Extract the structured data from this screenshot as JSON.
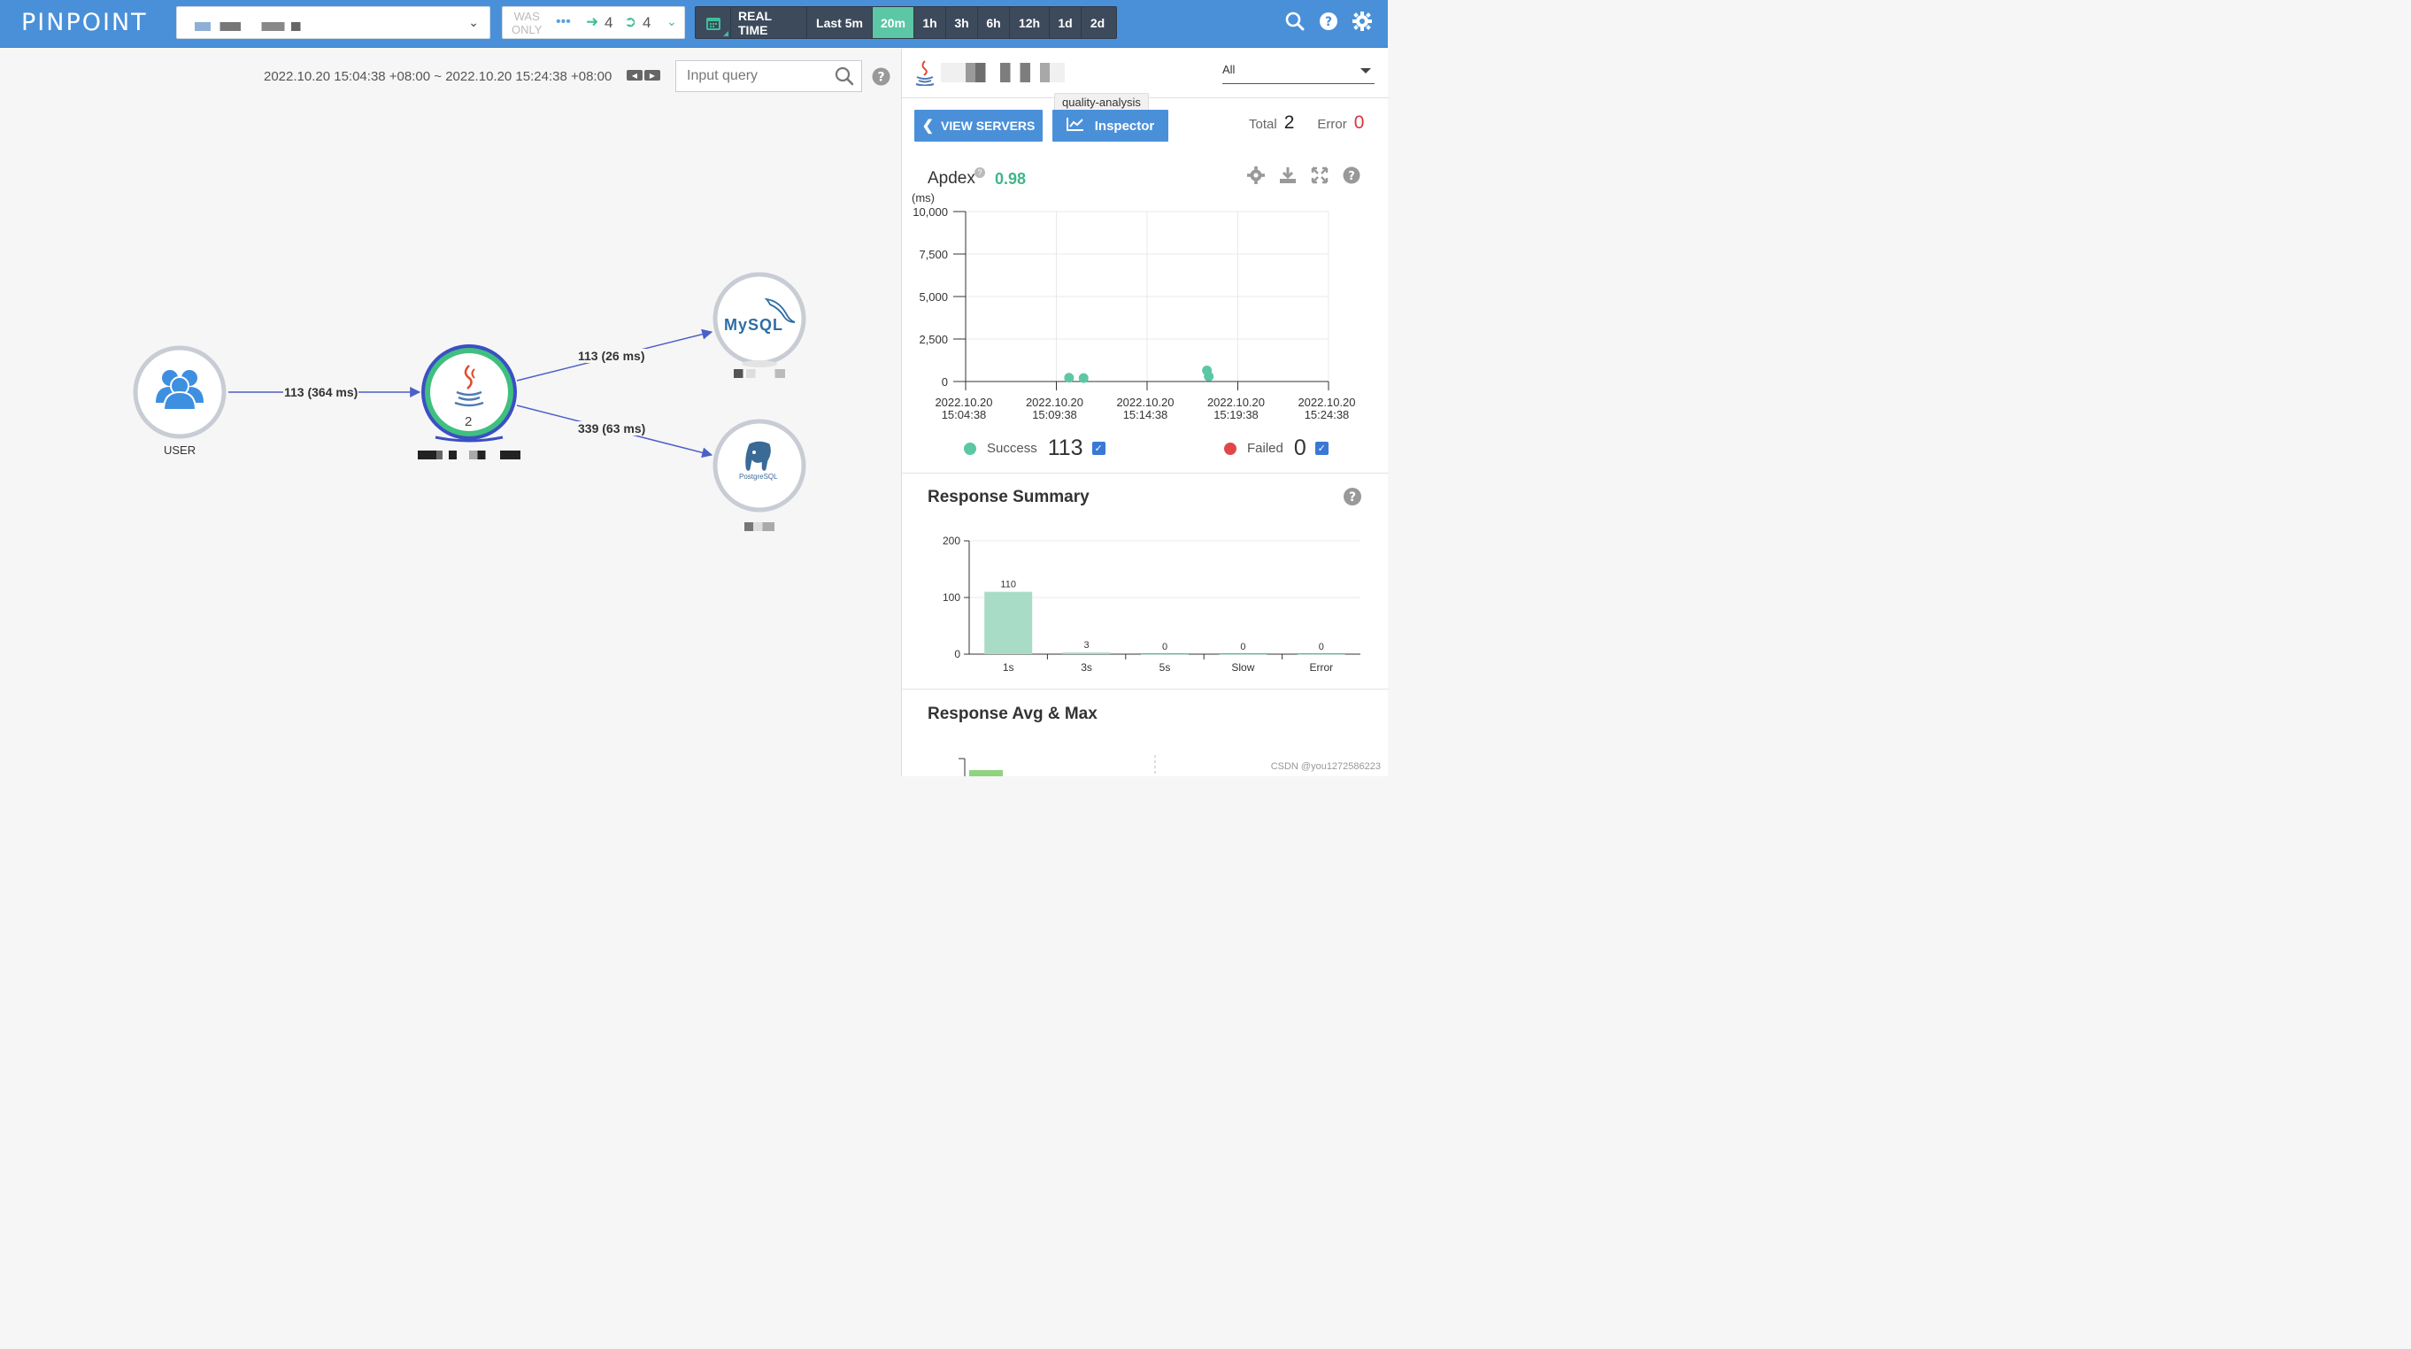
{
  "header": {
    "logo": "PINPOINT",
    "was_only": [
      "WAS",
      "ONLY"
    ],
    "inbound": "4",
    "outbound": "4",
    "ranges": [
      "REAL TIME",
      "Last 5m",
      "20m",
      "1h",
      "3h",
      "6h",
      "12h",
      "1d",
      "2d"
    ],
    "active_range": "20m"
  },
  "map": {
    "period": "2022.10.20 15:04:38 +08:00 ~ 2022.10.20 15:24:38 +08:00",
    "query_placeholder": "Input query",
    "nodes": {
      "user_label": "USER",
      "app_instance_count": "2",
      "mysql_text": "MySQL",
      "postgres_text": "PostgreSQL"
    },
    "edges": {
      "user_to_app": "113 (364 ms)",
      "app_to_mysql": "113 (26 ms)",
      "app_to_postgres": "339 (63 ms)"
    }
  },
  "panel": {
    "agent_filter": "All",
    "tooltip": "quality-analysis",
    "view_servers": "VIEW SERVERS",
    "inspector": "Inspector",
    "total_label": "Total",
    "total_value": "2",
    "error_label": "Error",
    "error_value": "0",
    "apdex_label": "Apdex",
    "apdex_value": "0.98",
    "success_label": "Success",
    "success_value": "113",
    "failed_label": "Failed",
    "failed_value": "0",
    "response_summary_title": "Response Summary",
    "response_avg_title": "Response Avg & Max",
    "colors": {
      "success": "#5cc7a5",
      "failed": "#e04848",
      "accent": "#4a90d9"
    }
  },
  "chart_data": [
    {
      "type": "scatter",
      "ylabel": "(ms)",
      "ylim": [
        0,
        10000
      ],
      "yticks": [
        "10,000",
        "7,500",
        "5,000",
        "2,500",
        "0"
      ],
      "xticks": [
        [
          "2022.10.20",
          "15:04:38"
        ],
        [
          "2022.10.20",
          "15:09:38"
        ],
        [
          "2022.10.20",
          "15:14:38"
        ],
        [
          "2022.10.20",
          "15:19:38"
        ],
        [
          "2022.10.20",
          "15:24:38"
        ]
      ],
      "xlim_minutes": [
        0,
        20
      ],
      "series": [
        {
          "name": "Success",
          "points": [
            [
              5.7,
              220
            ],
            [
              6.5,
              200
            ],
            [
              13.3,
              650
            ],
            [
              13.4,
              300
            ]
          ]
        }
      ]
    },
    {
      "type": "bar",
      "categories": [
        "1s",
        "3s",
        "5s",
        "Slow",
        "Error"
      ],
      "values": [
        110,
        3,
        0,
        0,
        0
      ],
      "ylim": [
        0,
        200
      ],
      "yticks": [
        "200",
        "100",
        "0"
      ]
    }
  ],
  "watermark": "CSDN @you1272586223"
}
